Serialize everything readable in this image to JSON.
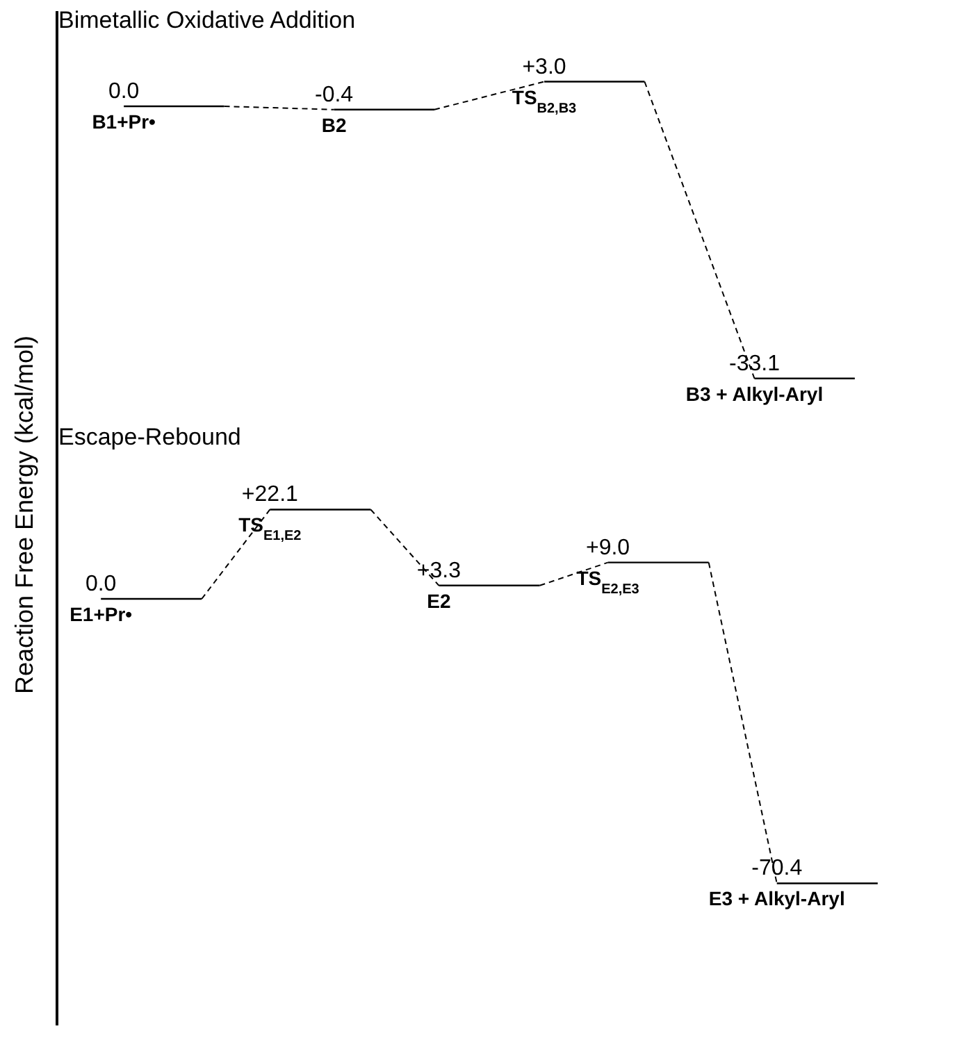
{
  "chart_data": [
    {
      "type": "other",
      "title": "Bimetallic Oxidative Addition",
      "ylabel": "Reaction Free Energy (kcal/mol)",
      "categories": [
        "B1+Pr•",
        "B2",
        "TS$_{B2,B3}$",
        "B3 + Alkyl-Aryl"
      ],
      "series": [
        {
          "color": "#000000",
          "values": [
            0.0,
            -0.4,
            3.0,
            -33.1
          ],
          "value_labels": [
            "0.0",
            "-0.4",
            "+3.0",
            "-33.1"
          ]
        }
      ]
    },
    {
      "type": "other",
      "title": "Escape-Rebound",
      "categories": [
        "E1+Pr•",
        "TS$_{E1,E2}$",
        "E2",
        "TS$_{E2,E3}$",
        "E3 + Alkyl-Aryl"
      ],
      "series": [
        {
          "color": "#000000",
          "values": [
            0.0,
            22.1,
            3.3,
            9.0,
            -70.4
          ],
          "value_labels": [
            "0.0",
            "+22.1",
            "+3.3",
            "+9.0",
            "-70.4"
          ]
        }
      ]
    }
  ]
}
